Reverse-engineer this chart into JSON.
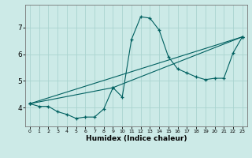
{
  "xlabel": "Humidex (Indice chaleur)",
  "background_color": "#cceae7",
  "grid_color": "#aad4d0",
  "line_color": "#006060",
  "xlim": [
    -0.5,
    23.5
  ],
  "ylim": [
    3.3,
    7.85
  ],
  "xticks": [
    0,
    1,
    2,
    3,
    4,
    5,
    6,
    7,
    8,
    9,
    10,
    11,
    12,
    13,
    14,
    15,
    16,
    17,
    18,
    19,
    20,
    21,
    22,
    23
  ],
  "yticks": [
    4,
    5,
    6,
    7
  ],
  "line1_x": [
    0,
    1,
    2,
    3,
    4,
    5,
    6,
    7,
    8,
    9,
    10,
    11,
    12,
    13,
    14,
    15,
    16,
    17,
    18,
    19,
    20,
    21,
    22,
    23
  ],
  "line1_y": [
    4.15,
    4.05,
    4.05,
    3.85,
    3.75,
    3.6,
    3.65,
    3.65,
    3.95,
    4.75,
    4.4,
    6.55,
    7.4,
    7.35,
    6.9,
    5.9,
    5.45,
    5.3,
    5.15,
    5.05,
    5.1,
    5.1,
    6.05,
    6.65
  ],
  "line2_x": [
    0,
    23
  ],
  "line2_y": [
    4.15,
    6.65
  ],
  "line3_x": [
    0,
    9,
    23
  ],
  "line3_y": [
    4.15,
    4.75,
    6.65
  ]
}
